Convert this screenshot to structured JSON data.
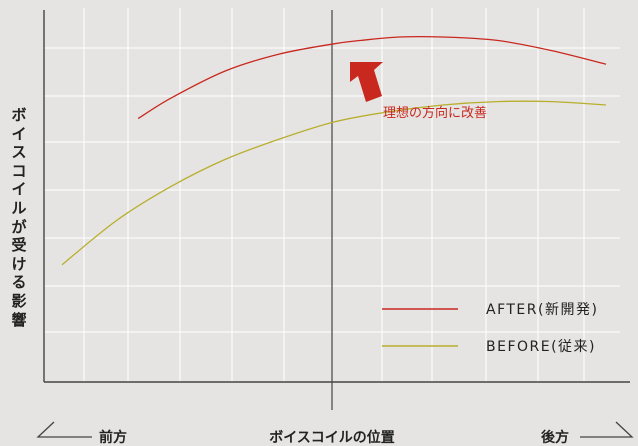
{
  "chart_data": {
    "type": "line",
    "title": "",
    "ylabel": "ボイスコイルが受ける影響",
    "xlabel": "ボイスコイルの位置",
    "x_direction_labels": {
      "left": "前方",
      "right": "後方"
    },
    "annotation": "理想の方向に改善",
    "grid": true,
    "legend_position": "bottom-right",
    "x": [
      0,
      10,
      20,
      30,
      40,
      50,
      60,
      70,
      80,
      90,
      100
    ],
    "xlim": [
      0,
      100
    ],
    "ylim": [
      0,
      100
    ],
    "series": [
      {
        "name": "AFTER(新開発)",
        "color": "#c8281e",
        "x": [
          14,
          20,
          30,
          40,
          50,
          55,
          62,
          70,
          80,
          90,
          100
        ],
        "values": [
          71,
          77,
          85,
          90,
          93,
          94,
          95,
          95,
          94,
          91,
          87
        ]
      },
      {
        "name": "BEFORE(従来)",
        "color": "#b8ae2e",
        "x": [
          0,
          10,
          20,
          30,
          40,
          50,
          60,
          70,
          80,
          90,
          100
        ],
        "values": [
          28,
          41,
          51,
          59,
          65,
          70,
          73,
          75,
          76,
          76,
          75
        ]
      }
    ]
  }
}
